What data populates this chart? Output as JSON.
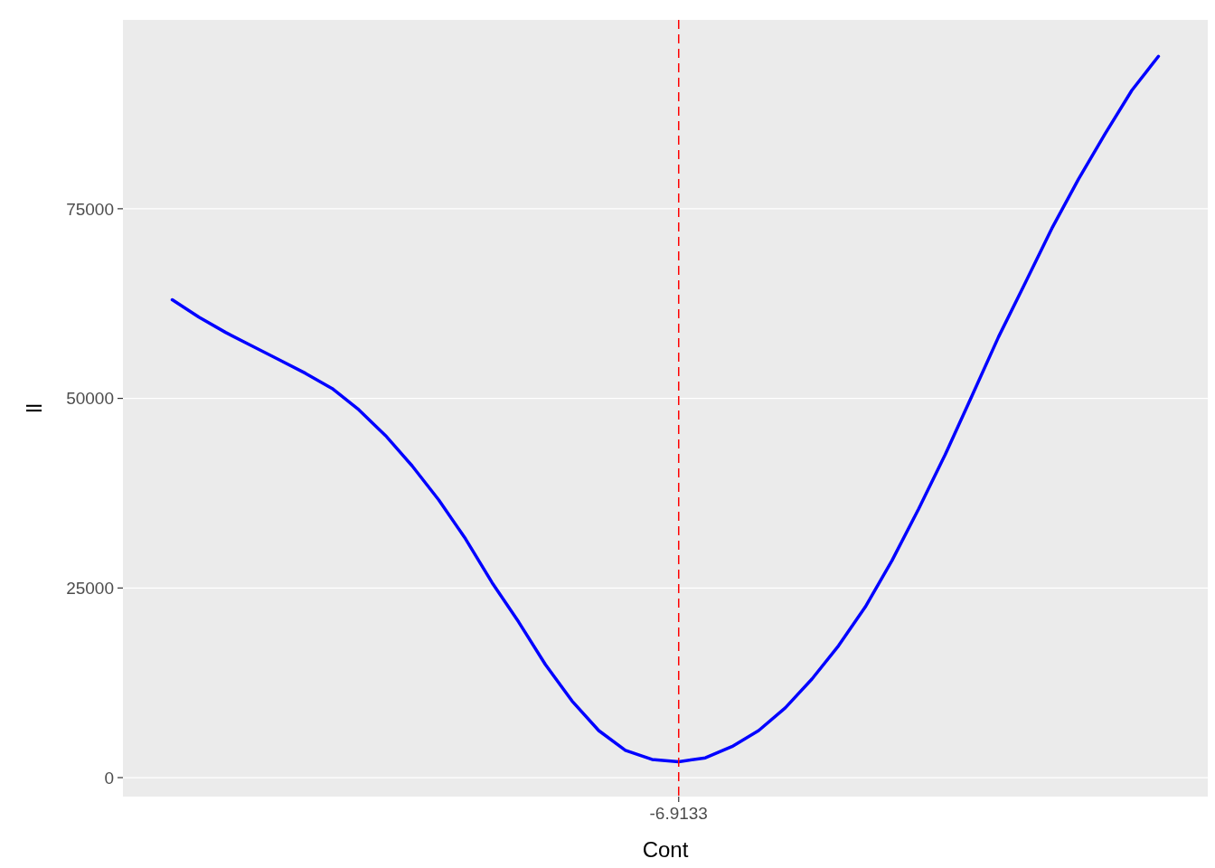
{
  "chart_data": {
    "type": "line",
    "xlabel": "Cont",
    "ylabel": "ll",
    "categories": [
      null,
      null,
      null,
      null,
      null,
      null,
      null,
      null,
      null,
      null,
      null,
      null,
      null,
      null,
      null,
      null,
      null,
      null,
      null,
      "-6.9133",
      null,
      null,
      null,
      null,
      null,
      null,
      null,
      null,
      null,
      null,
      null,
      null,
      null,
      null,
      null,
      null,
      null,
      null
    ],
    "series": [
      {
        "color": "#0000ff",
        "values": [
          63000,
          60700,
          58700,
          56900,
          55100,
          53300,
          51300,
          48500,
          45100,
          41100,
          36600,
          31500,
          25700,
          20500,
          14900,
          10100,
          6200,
          3600,
          2400,
          2100,
          2600,
          4100,
          6200,
          9200,
          13000,
          17400,
          22500,
          28600,
          35400,
          42600,
          50300,
          58100,
          65200,
          72400,
          78900,
          84900,
          90600,
          95100
        ]
      }
    ],
    "ylim": [
      -2500,
      99900
    ],
    "yticks": [
      0,
      25000,
      50000,
      75000
    ],
    "grid": "y",
    "line_style": "solid",
    "ref_lines": [
      {
        "axis": "x",
        "value": "-6.9133",
        "color": "#ff0000",
        "line_style": "dashed"
      }
    ]
  }
}
